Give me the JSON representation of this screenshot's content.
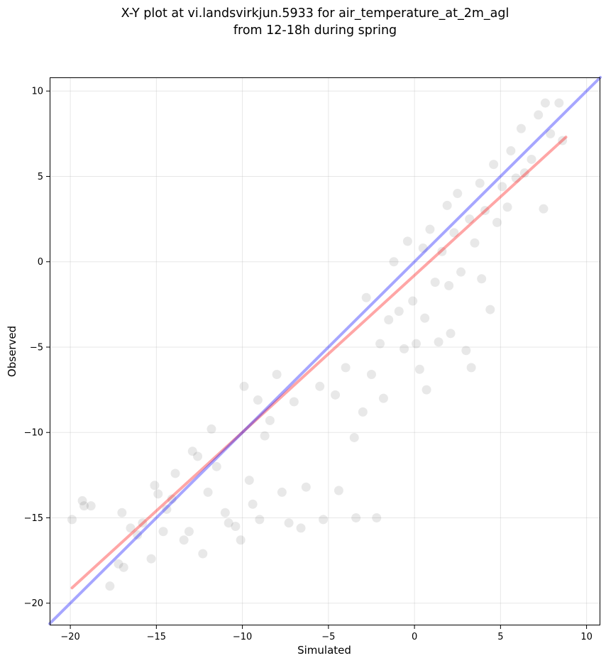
{
  "chart_data": {
    "type": "scatter",
    "title": "X-Y plot at vi.landsvirkjun.5933 for air_temperature_at_2m_agl",
    "subtitle": "from 12-18h during spring",
    "xlabel": "Simulated",
    "ylabel": "Observed",
    "xlim": [
      -21.2,
      10.8
    ],
    "ylim": [
      -21.3,
      10.8
    ],
    "xticks": [
      -20,
      -15,
      -10,
      -5,
      0,
      5,
      10
    ],
    "yticks": [
      -20,
      -15,
      -10,
      -5,
      0,
      5,
      10
    ],
    "xtick_labels": [
      "−20",
      "−15",
      "−10",
      "−5",
      "0",
      "5",
      "10"
    ],
    "ytick_labels": [
      "−20",
      "−15",
      "−10",
      "−5",
      "0",
      "5",
      "10"
    ],
    "grid": true,
    "legend": "none",
    "point_color": "#000000",
    "point_alpha": 0.09,
    "series": [
      {
        "values": [
          [
            -19.9,
            -15.1
          ],
          [
            -19.3,
            -14.0
          ],
          [
            -19.2,
            -14.3
          ],
          [
            -18.8,
            -14.3
          ],
          [
            -17.7,
            -19.0
          ],
          [
            -17.2,
            -17.7
          ],
          [
            -17.0,
            -14.7
          ],
          [
            -16.9,
            -17.9
          ],
          [
            -16.5,
            -15.6
          ],
          [
            -16.1,
            -16.0
          ],
          [
            -15.8,
            -15.3
          ],
          [
            -15.3,
            -17.4
          ],
          [
            -15.1,
            -13.1
          ],
          [
            -14.6,
            -15.8
          ],
          [
            -14.4,
            -14.5
          ],
          [
            -14.1,
            -13.9
          ],
          [
            -13.9,
            -12.4
          ],
          [
            -13.4,
            -16.3
          ],
          [
            -13.1,
            -15.8
          ],
          [
            -12.6,
            -11.4
          ],
          [
            -12.3,
            -17.1
          ],
          [
            -12.0,
            -13.5
          ],
          [
            -11.8,
            -9.8
          ],
          [
            -11.5,
            -12.0
          ],
          [
            -11.0,
            -14.7
          ],
          [
            -10.8,
            -15.3
          ],
          [
            -10.4,
            -15.5
          ],
          [
            -10.1,
            -16.3
          ],
          [
            -9.9,
            -7.3
          ],
          [
            -9.6,
            -12.8
          ],
          [
            -9.4,
            -14.2
          ],
          [
            -9.1,
            -8.1
          ],
          [
            -9.0,
            -15.1
          ],
          [
            -8.7,
            -10.2
          ],
          [
            -8.4,
            -9.3
          ],
          [
            -8.0,
            -6.6
          ],
          [
            -7.7,
            -13.5
          ],
          [
            -7.3,
            -15.3
          ],
          [
            -7.0,
            -8.2
          ],
          [
            -6.6,
            -15.6
          ],
          [
            -6.3,
            -13.2
          ],
          [
            -5.5,
            -7.3
          ],
          [
            -5.3,
            -15.1
          ],
          [
            -4.6,
            -7.8
          ],
          [
            -4.4,
            -13.4
          ],
          [
            -4.0,
            -6.2
          ],
          [
            -3.5,
            -10.3
          ],
          [
            -3.4,
            -15.0
          ],
          [
            -3.0,
            -8.8
          ],
          [
            -2.8,
            -2.1
          ],
          [
            -2.5,
            -6.6
          ],
          [
            -2.2,
            -15.0
          ],
          [
            -2.0,
            -4.8
          ],
          [
            -1.8,
            -8.0
          ],
          [
            -1.5,
            -3.4
          ],
          [
            -1.2,
            0.0
          ],
          [
            -0.9,
            -2.9
          ],
          [
            -0.6,
            -5.1
          ],
          [
            -0.4,
            1.2
          ],
          [
            -0.1,
            -2.3
          ],
          [
            0.1,
            -4.8
          ],
          [
            0.3,
            -6.3
          ],
          [
            0.5,
            0.8
          ],
          [
            0.6,
            -3.3
          ],
          [
            0.7,
            -7.5
          ],
          [
            0.9,
            1.9
          ],
          [
            1.2,
            -1.2
          ],
          [
            1.4,
            -4.7
          ],
          [
            1.6,
            0.6
          ],
          [
            1.9,
            3.3
          ],
          [
            2.0,
            -1.4
          ],
          [
            2.1,
            -4.2
          ],
          [
            2.3,
            1.7
          ],
          [
            2.5,
            4.0
          ],
          [
            2.7,
            -0.6
          ],
          [
            3.0,
            -5.2
          ],
          [
            3.2,
            2.5
          ],
          [
            3.3,
            -6.2
          ],
          [
            3.5,
            1.1
          ],
          [
            3.8,
            4.6
          ],
          [
            3.9,
            -1.0
          ],
          [
            4.1,
            3.0
          ],
          [
            4.4,
            -2.8
          ],
          [
            4.6,
            5.7
          ],
          [
            4.8,
            2.3
          ],
          [
            5.1,
            4.4
          ],
          [
            5.4,
            3.2
          ],
          [
            5.6,
            6.5
          ],
          [
            5.9,
            4.9
          ],
          [
            6.2,
            7.8
          ],
          [
            6.4,
            5.2
          ],
          [
            6.8,
            6.0
          ],
          [
            7.2,
            8.6
          ],
          [
            7.5,
            3.1
          ],
          [
            7.6,
            9.3
          ],
          [
            7.9,
            7.5
          ],
          [
            8.4,
            9.3
          ],
          [
            8.6,
            7.1
          ],
          [
            -14.9,
            -13.6
          ],
          [
            -12.9,
            -11.1
          ]
        ]
      }
    ],
    "lines": [
      {
        "color": "#ff0000",
        "alpha": 0.35,
        "points": [
          [
            -19.9,
            -19.1
          ],
          [
            8.8,
            7.3
          ]
        ]
      },
      {
        "color": "#0000ff",
        "alpha": 0.35,
        "points": [
          [
            -21.2,
            -21.2
          ],
          [
            10.8,
            10.8
          ]
        ]
      }
    ]
  }
}
